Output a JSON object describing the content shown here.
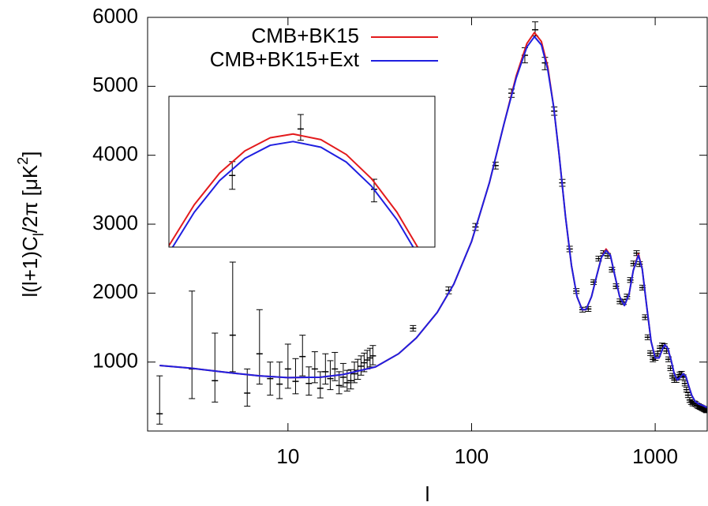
{
  "chart_data": [
    {
      "type": "line",
      "x_label": "l",
      "y_label": [
        {
          "text": "l(l+1)C"
        },
        {
          "text": "l",
          "shift": "sub"
        },
        {
          "text": "/2π [μK"
        },
        {
          "text": "2",
          "shift": "super"
        },
        {
          "text": "]"
        }
      ],
      "log_x": true,
      "xlim": [
        1.72,
        1920
      ],
      "xticks": [
        10,
        100,
        1000
      ],
      "ylim": [
        0,
        6000
      ],
      "yticks": [
        1000,
        2000,
        3000,
        4000,
        5000,
        6000
      ],
      "legend": "top-left",
      "x": [
        2,
        3,
        4,
        5,
        7,
        10,
        15,
        20,
        30,
        40,
        50,
        65,
        80,
        100,
        125,
        150,
        175,
        200,
        220,
        240,
        260,
        280,
        300,
        325,
        350,
        375,
        400,
        420,
        450,
        480,
        510,
        540,
        570,
        600,
        640,
        680,
        720,
        760,
        810,
        850,
        900,
        950,
        1000,
        1050,
        1100,
        1130,
        1170,
        1220,
        1270,
        1320,
        1370,
        1420,
        1470,
        1520,
        1580,
        1650,
        1730,
        1820,
        1920
      ],
      "series": [
        {
          "name": "CMB+BK15",
          "color": "#e31a1c",
          "values": [
            950,
            910,
            870,
            840,
            800,
            775,
            780,
            820,
            930,
            1120,
            1350,
            1720,
            2130,
            2750,
            3600,
            4450,
            5150,
            5620,
            5780,
            5650,
            5280,
            4700,
            4000,
            3100,
            2400,
            1950,
            1760,
            1760,
            1950,
            2250,
            2520,
            2640,
            2550,
            2280,
            1950,
            1820,
            1980,
            2330,
            2570,
            2350,
            1800,
            1300,
            1060,
            1060,
            1200,
            1250,
            1200,
            1030,
            830,
            740,
            780,
            830,
            790,
            660,
            520,
            430,
            390,
            370,
            340
          ]
        },
        {
          "name": "CMB+BK15+Ext",
          "color": "#1f1fe0",
          "values": [
            950,
            910,
            870,
            840,
            800,
            775,
            780,
            820,
            930,
            1120,
            1350,
            1720,
            2130,
            2750,
            3600,
            4450,
            5120,
            5570,
            5720,
            5600,
            5240,
            4700,
            4000,
            3100,
            2400,
            1950,
            1760,
            1760,
            1950,
            2250,
            2520,
            2620,
            2550,
            2280,
            1950,
            1820,
            1980,
            2330,
            2550,
            2350,
            1800,
            1300,
            1060,
            1060,
            1200,
            1250,
            1200,
            1030,
            830,
            740,
            780,
            830,
            790,
            660,
            520,
            430,
            390,
            370,
            340
          ]
        }
      ],
      "points": {
        "color": "#000000",
        "x": [
          2,
          3,
          4,
          5,
          6,
          7,
          8,
          9,
          10,
          11,
          12,
          13,
          14,
          15,
          16,
          17,
          18,
          19,
          20,
          21,
          22,
          23,
          24,
          25,
          26,
          27,
          28,
          29,
          48,
          75,
          105,
          135,
          165,
          195,
          222,
          251,
          282,
          312,
          342,
          372,
          402,
          432,
          462,
          492,
          522,
          552,
          582,
          612,
          642,
          672,
          702,
          732,
          762,
          792,
          822,
          852,
          882,
          912,
          942,
          972,
          1002,
          1032,
          1062,
          1092,
          1122,
          1152,
          1182,
          1212,
          1242,
          1272,
          1302,
          1332,
          1362,
          1392,
          1422,
          1452,
          1482,
          1512,
          1542,
          1572,
          1602,
          1632,
          1662,
          1692,
          1722,
          1752,
          1782,
          1812,
          1842,
          1872,
          1902
        ],
        "values": [
          250,
          900,
          730,
          1390,
          550,
          1120,
          760,
          680,
          900,
          720,
          1080,
          690,
          900,
          620,
          860,
          760,
          900,
          660,
          780,
          700,
          730,
          830,
          880,
          940,
          990,
          1030,
          1060,
          1090,
          1490,
          2040,
          2960,
          3850,
          4900,
          5450,
          5820,
          5340,
          4640,
          3600,
          2640,
          2030,
          1760,
          1770,
          2160,
          2500,
          2580,
          2540,
          2340,
          2100,
          1880,
          1870,
          1950,
          2190,
          2430,
          2580,
          2420,
          2080,
          1650,
          1360,
          1130,
          1040,
          1060,
          1120,
          1200,
          1240,
          1230,
          1160,
          1040,
          910,
          800,
          740,
          740,
          780,
          820,
          830,
          780,
          690,
          600,
          520,
          450,
          420,
          400,
          400,
          390,
          370,
          360,
          350,
          340,
          330,
          320,
          310,
          300
        ],
        "lower": [
          100,
          470,
          420,
          860,
          360,
          680,
          520,
          470,
          620,
          540,
          800,
          520,
          700,
          480,
          680,
          600,
          730,
          540,
          640,
          580,
          610,
          700,
          750,
          810,
          860,
          900,
          930,
          960,
          1450,
          1990,
          2910,
          3800,
          4840,
          5340,
          5730,
          5240,
          4580,
          3550,
          2600,
          1995,
          1725,
          1735,
          2125,
          2465,
          2545,
          2505,
          2305,
          2065,
          1845,
          1835,
          1915,
          2155,
          2395,
          2545,
          2385,
          2045,
          1615,
          1325,
          1095,
          1005,
          1025,
          1085,
          1165,
          1205,
          1195,
          1125,
          1005,
          875,
          765,
          705,
          705,
          745,
          785,
          795,
          745,
          655,
          565,
          485,
          415,
          385,
          365,
          365,
          355,
          335,
          325,
          315,
          305,
          295,
          285,
          275,
          265
        ],
        "upper": [
          800,
          2030,
          1420,
          2450,
          900,
          1760,
          1000,
          1000,
          1260,
          1050,
          1390,
          930,
          1150,
          860,
          1120,
          1020,
          1140,
          860,
          980,
          880,
          890,
          1000,
          1040,
          1090,
          1130,
          1170,
          1200,
          1240,
          1530,
          2090,
          3010,
          3900,
          4960,
          5560,
          5935,
          5420,
          4700,
          3650,
          2680,
          2065,
          1795,
          1805,
          2195,
          2535,
          2615,
          2575,
          2375,
          2135,
          1915,
          1905,
          1985,
          2225,
          2465,
          2615,
          2455,
          2115,
          1685,
          1395,
          1165,
          1075,
          1095,
          1155,
          1235,
          1275,
          1265,
          1195,
          1075,
          945,
          835,
          775,
          775,
          815,
          855,
          865,
          815,
          725,
          635,
          555,
          485,
          455,
          435,
          435,
          425,
          405,
          395,
          385,
          375,
          365,
          355,
          345,
          335
        ]
      }
    },
    {
      "type": "line",
      "xlim": [
        170,
        275
      ],
      "ylim": [
        4880,
        6080
      ],
      "x": [
        170,
        180,
        190,
        200,
        210,
        219,
        230,
        240,
        250,
        260,
        270
      ],
      "series": [
        {
          "color": "#e31a1c",
          "values": [
            4891,
            5217,
            5469,
            5646,
            5750,
            5780,
            5735,
            5617,
            5424,
            5158,
            4818
          ]
        },
        {
          "color": "#1f1fe0",
          "values": [
            4832,
            5157,
            5409,
            5586,
            5690,
            5720,
            5675,
            5557,
            5364,
            5098,
            4758
          ]
        }
      ],
      "points": {
        "color": "#000000",
        "x": [
          195,
          222,
          251
        ],
        "values": [
          5450,
          5820,
          5340
        ],
        "lower": [
          5340,
          5730,
          5240
        ],
        "upper": [
          5560,
          5935,
          5420
        ]
      }
    }
  ]
}
